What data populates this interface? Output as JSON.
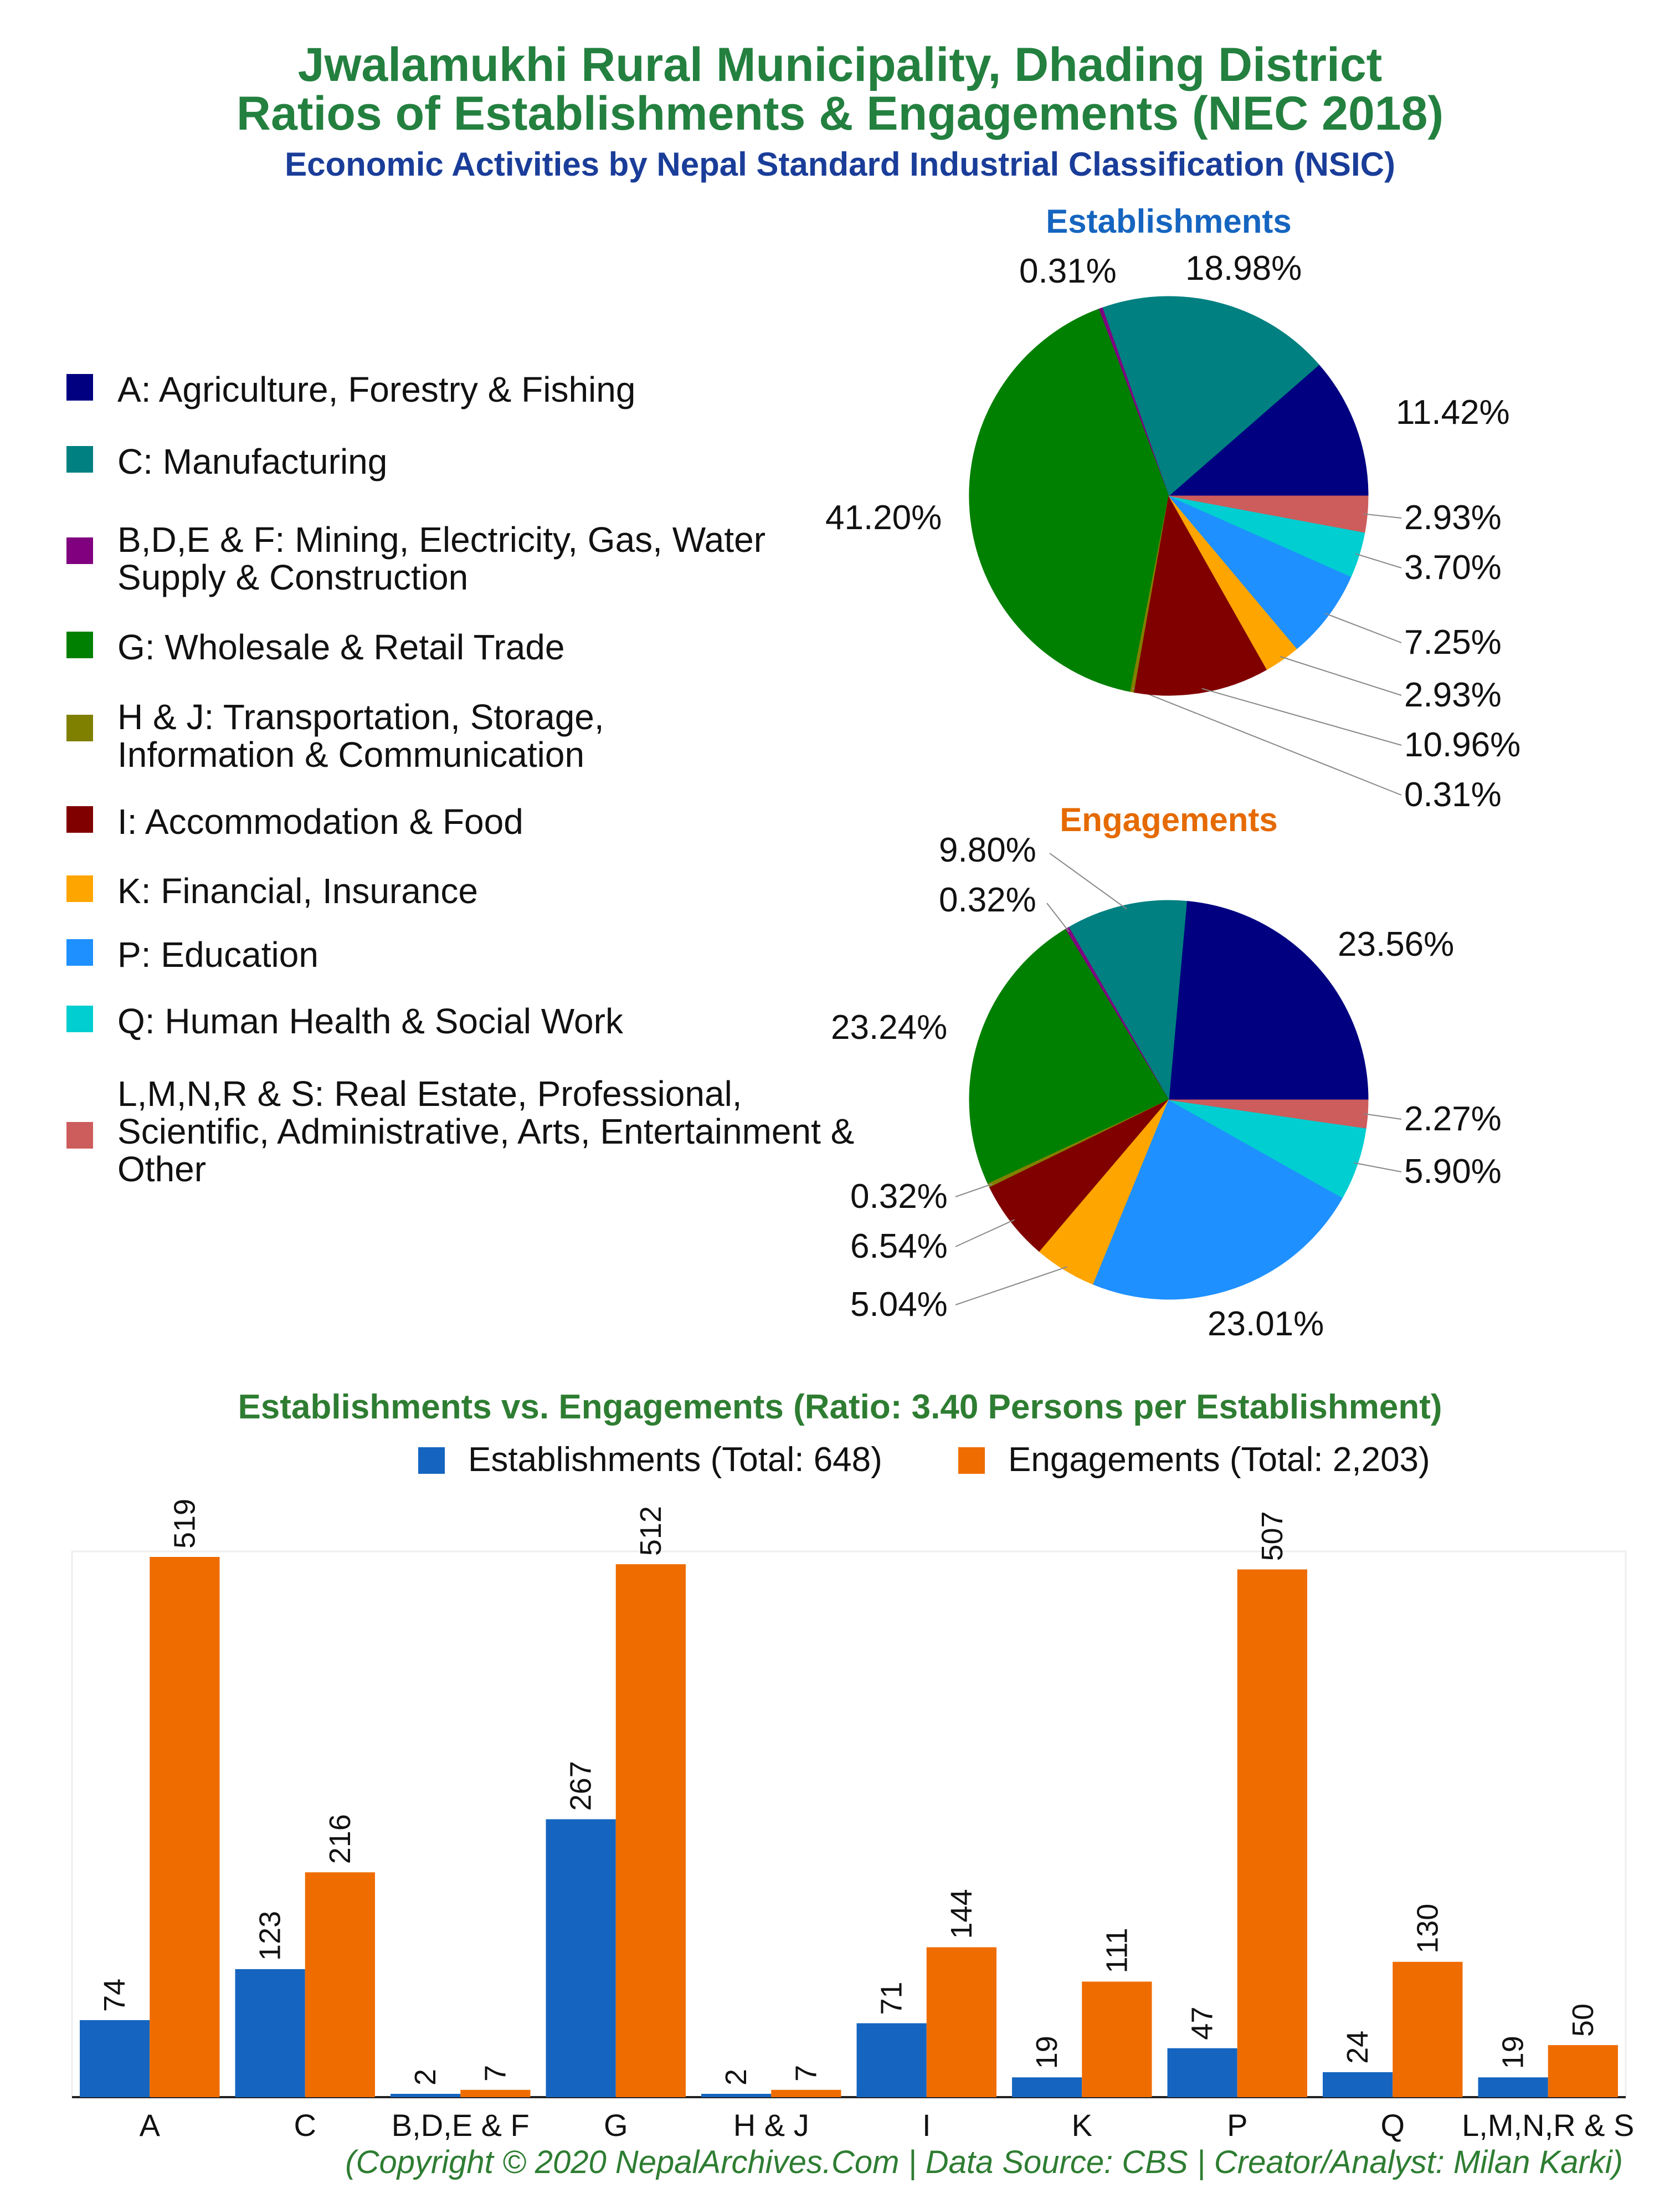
{
  "header": {
    "title_line1": "Jwalamukhi Rural Municipality, Dhading District",
    "title_line2": "Ratios of Establishments & Engagements (NEC 2018)",
    "subtitle": "Economic Activities by Nepal Standard Industrial Classification (NSIC)"
  },
  "legend": [
    {
      "label": "A: Agriculture, Forestry & Fishing",
      "color": "#000080"
    },
    {
      "label": "C: Manufacturing",
      "color": "#008080"
    },
    {
      "label": "B,D,E & F: Mining, Electricity, Gas, Water Supply & Construction",
      "color": "#800080"
    },
    {
      "label": "G: Wholesale & Retail Trade",
      "color": "#008000"
    },
    {
      "label": "H & J: Transportation, Storage, Information & Communication",
      "color": "#808000"
    },
    {
      "label": "I: Accommodation & Food",
      "color": "#800000"
    },
    {
      "label": "K: Financial, Insurance",
      "color": "#FFA500"
    },
    {
      "label": "P: Education",
      "color": "#1E90FF"
    },
    {
      "label": "Q: Human Health & Social Work",
      "color": "#00CED1"
    },
    {
      "label": "L,M,N,R & S: Real Estate, Professional, Scientific, Administrative, Arts, Entertainment & Other",
      "color": "#CD5C5C"
    }
  ],
  "chart_data": [
    {
      "type": "pie",
      "title": "Establishments",
      "title_color": "#1565C0",
      "categories": [
        "A",
        "C",
        "B,D,E & F",
        "G",
        "H & J",
        "I",
        "K",
        "P",
        "Q",
        "L,M,N,R & S"
      ],
      "values": [
        11.42,
        18.98,
        0.31,
        41.2,
        0.31,
        10.96,
        2.93,
        7.25,
        3.7,
        2.93
      ],
      "labels": [
        "11.42%",
        "18.98%",
        "0.31%",
        "41.20%",
        "0.31%",
        "10.96%",
        "2.93%",
        "7.25%",
        "3.70%",
        "2.93%"
      ]
    },
    {
      "type": "pie",
      "title": "Engagements",
      "title_color": "#E56A00",
      "categories": [
        "A",
        "C",
        "B,D,E & F",
        "G",
        "H & J",
        "I",
        "K",
        "P",
        "Q",
        "L,M,N,R & S"
      ],
      "values": [
        23.56,
        9.8,
        0.32,
        23.24,
        0.32,
        6.54,
        5.04,
        23.01,
        5.9,
        2.27
      ],
      "labels": [
        "23.56%",
        "9.80%",
        "0.32%",
        "23.24%",
        "0.32%",
        "6.54%",
        "5.04%",
        "23.01%",
        "5.90%",
        "2.27%"
      ]
    },
    {
      "type": "bar",
      "title": "Establishments vs. Engagements (Ratio: 3.40 Persons per Establishment)",
      "categories": [
        "A",
        "C",
        "B,D,E & F",
        "G",
        "H & J",
        "I",
        "K",
        "P",
        "Q",
        "L,M,N,R & S"
      ],
      "series": [
        {
          "name": "Establishments (Total: 648)",
          "color": "#1565C0",
          "values": [
            74,
            123,
            2,
            267,
            2,
            71,
            19,
            47,
            24,
            19
          ]
        },
        {
          "name": "Engagements (Total: 2,203)",
          "color": "#EF6C00",
          "values": [
            519,
            216,
            7,
            512,
            7,
            144,
            111,
            507,
            130,
            50
          ]
        }
      ],
      "ylim": [
        0,
        519
      ],
      "grid": false
    }
  ],
  "footer": "(Copyright © 2020 NepalArchives.Com | Data Source: CBS | Creator/Analyst: Milan Karki)"
}
